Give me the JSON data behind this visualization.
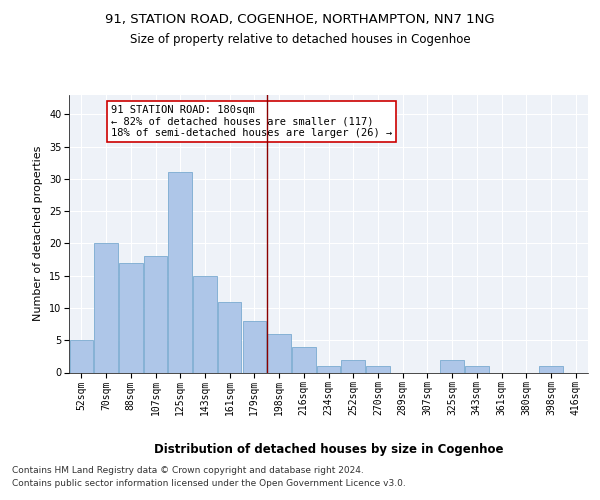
{
  "title1": "91, STATION ROAD, COGENHOE, NORTHAMPTON, NN7 1NG",
  "title2": "Size of property relative to detached houses in Cogenhoe",
  "xlabel": "Distribution of detached houses by size in Cogenhoe",
  "ylabel": "Number of detached properties",
  "categories": [
    "52sqm",
    "70sqm",
    "88sqm",
    "107sqm",
    "125sqm",
    "143sqm",
    "161sqm",
    "179sqm",
    "198sqm",
    "216sqm",
    "234sqm",
    "252sqm",
    "270sqm",
    "289sqm",
    "307sqm",
    "325sqm",
    "343sqm",
    "361sqm",
    "380sqm",
    "398sqm",
    "416sqm"
  ],
  "values": [
    5,
    20,
    17,
    18,
    31,
    15,
    11,
    8,
    6,
    4,
    1,
    2,
    1,
    0,
    0,
    2,
    1,
    0,
    0,
    1,
    0
  ],
  "bar_color": "#aec6e8",
  "bar_edge_color": "#7aaad0",
  "vline_color": "#8B0000",
  "annotation_text": "91 STATION ROAD: 180sqm\n← 82% of detached houses are smaller (117)\n18% of semi-detached houses are larger (26) →",
  "annotation_box_color": "white",
  "annotation_box_edge": "#cc0000",
  "ylim": [
    0,
    43
  ],
  "yticks": [
    0,
    5,
    10,
    15,
    20,
    25,
    30,
    35,
    40
  ],
  "bg_color": "#eef2f8",
  "grid_color": "white",
  "footer1": "Contains HM Land Registry data © Crown copyright and database right 2024.",
  "footer2": "Contains public sector information licensed under the Open Government Licence v3.0.",
  "title1_fontsize": 9.5,
  "title2_fontsize": 8.5,
  "ylabel_fontsize": 8,
  "xlabel_fontsize": 8.5,
  "tick_fontsize": 7,
  "annotation_fontsize": 7.5,
  "footer_fontsize": 6.5
}
